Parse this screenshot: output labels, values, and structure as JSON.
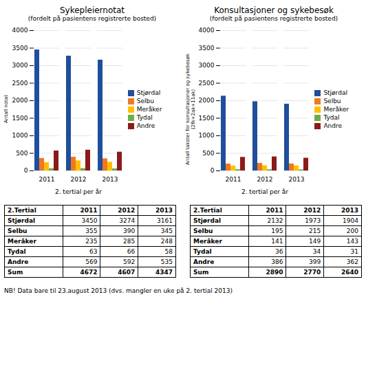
{
  "chart_data": [
    {
      "type": "bar",
      "title": "Sykepleiernotat",
      "subtitle": "(fordelt på pasientens registrerte bosted)",
      "ylabel": "Antall notat",
      "xlabel": "2. tertial per år",
      "categories": [
        "2011",
        "2012",
        "2013"
      ],
      "series": [
        {
          "name": "Stjørdal",
          "color": "#1f4e9c",
          "values": [
            3450,
            3274,
            3161
          ]
        },
        {
          "name": "Selbu",
          "color": "#f07820",
          "values": [
            355,
            390,
            345
          ]
        },
        {
          "name": "Meråker",
          "color": "#ffc000",
          "values": [
            235,
            285,
            248
          ]
        },
        {
          "name": "Tydal",
          "color": "#70ad47",
          "values": [
            63,
            66,
            58
          ]
        },
        {
          "name": "Andre",
          "color": "#8b1a1a",
          "values": [
            569,
            592,
            535
          ]
        }
      ],
      "ylim": [
        0,
        4000
      ],
      "yticks": [
        0,
        500,
        1000,
        1500,
        2000,
        2500,
        3000,
        3500,
        4000
      ],
      "grid": true,
      "legend": "right"
    },
    {
      "type": "bar",
      "title": "Konsultasjoner og sykebesøk",
      "subtitle": "(fordelt på pasientens registrerte bosted)",
      "ylabel": "Antall takster for konsultasjoner og sykebesøk (2fk+2ak+11ak)",
      "xlabel": "2. tertial per år",
      "categories": [
        "2011",
        "2012",
        "2013"
      ],
      "series": [
        {
          "name": "Stjørdal",
          "color": "#1f4e9c",
          "values": [
            2132,
            1973,
            1904
          ]
        },
        {
          "name": "Selbu",
          "color": "#f07820",
          "values": [
            195,
            215,
            200
          ]
        },
        {
          "name": "Meråker",
          "color": "#ffc000",
          "values": [
            141,
            149,
            143
          ]
        },
        {
          "name": "Tydal",
          "color": "#70ad47",
          "values": [
            36,
            34,
            31
          ]
        },
        {
          "name": "Andre",
          "color": "#8b1a1a",
          "values": [
            386,
            399,
            362
          ]
        }
      ],
      "ylim": [
        0,
        4000
      ],
      "yticks": [
        0,
        500,
        1000,
        1500,
        2000,
        2500,
        3000,
        3500,
        4000
      ],
      "grid": true,
      "legend": "right"
    },
    {
      "type": "table",
      "headers": [
        "2.Tertial",
        "2011",
        "2012",
        "2013"
      ],
      "rows": [
        [
          "Stjørdal",
          "3450",
          "3274",
          "3161"
        ],
        [
          "Selbu",
          "355",
          "390",
          "345"
        ],
        [
          "Meråker",
          "235",
          "285",
          "248"
        ],
        [
          "Tydal",
          "63",
          "66",
          "58"
        ],
        [
          "Andre",
          "569",
          "592",
          "535"
        ],
        [
          "Sum",
          "4672",
          "4607",
          "4347"
        ]
      ]
    },
    {
      "type": "table",
      "headers": [
        "2.Tertial",
        "2011",
        "2012",
        "2013"
      ],
      "rows": [
        [
          "Stjørdal",
          "2132",
          "1973",
          "1904"
        ],
        [
          "Selbu",
          "195",
          "215",
          "200"
        ],
        [
          "Meråker",
          "141",
          "149",
          "143"
        ],
        [
          "Tydal",
          "36",
          "34",
          "31"
        ],
        [
          "Andre",
          "386",
          "399",
          "362"
        ],
        [
          "Sum",
          "2890",
          "2770",
          "2640"
        ]
      ]
    }
  ],
  "footnote": "NB! Data bare til 23.august 2013 (dvs. mangler en uke på 2. tertial 2013)"
}
